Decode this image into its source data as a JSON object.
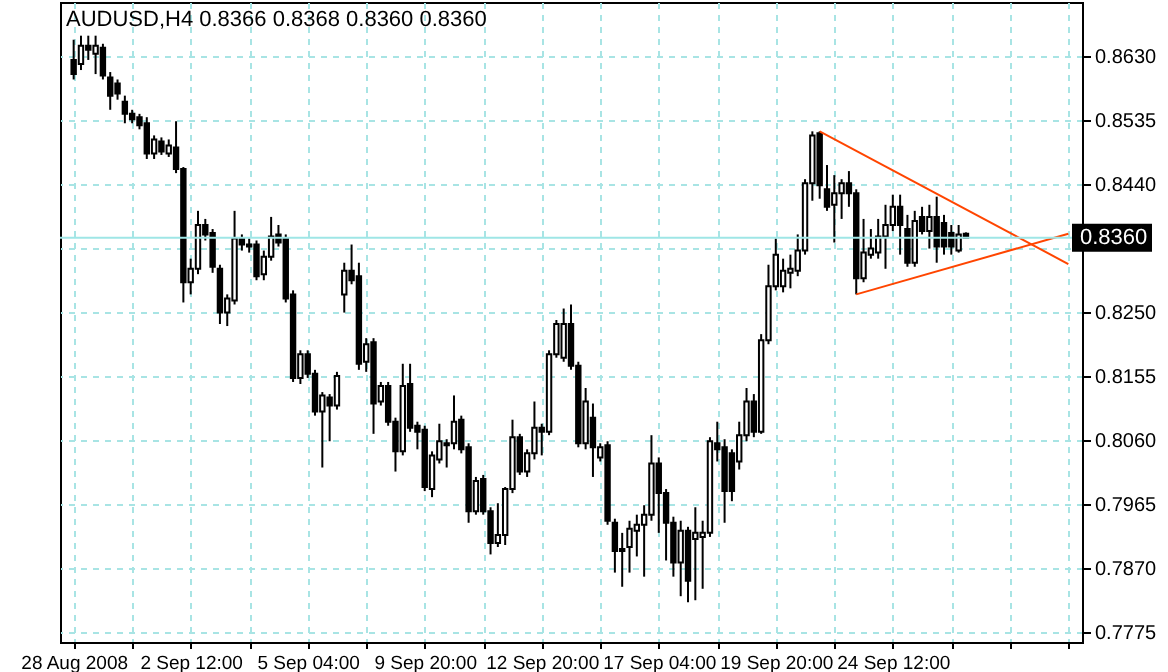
{
  "chart_data": {
    "type": "candlestick",
    "title": "AUDUSD,H4 0.8366 0.8368 0.8360 0.8360",
    "categories": [
      "28 Aug 2008",
      null,
      null,
      null,
      null,
      null,
      null,
      null,
      null,
      null,
      null,
      null,
      null,
      null,
      null,
      null,
      "2 Sep 12:00",
      null,
      null,
      null,
      null,
      null,
      null,
      null,
      null,
      null,
      null,
      null,
      null,
      null,
      null,
      null,
      "5 Sep 04:00",
      null,
      null,
      null,
      null,
      null,
      null,
      null,
      null,
      null,
      null,
      null,
      null,
      null,
      null,
      null,
      "9 Sep 20:00",
      null,
      null,
      null,
      null,
      null,
      null,
      null,
      null,
      null,
      null,
      null,
      null,
      null,
      null,
      null,
      "12 Sep 20:00",
      null,
      null,
      null,
      null,
      null,
      null,
      null,
      null,
      null,
      null,
      null,
      null,
      null,
      null,
      null,
      "17 Sep 04:00",
      null,
      null,
      null,
      null,
      null,
      null,
      null,
      null,
      null,
      null,
      null,
      null,
      null,
      null,
      null,
      "19 Sep 20:00",
      null,
      null,
      null,
      null,
      null,
      null,
      null,
      null,
      null,
      null,
      null,
      null,
      null,
      null,
      null,
      "24 Sep 12:00",
      null,
      null,
      null,
      null,
      null,
      null,
      null,
      null,
      null,
      null,
      null,
      null,
      null,
      null,
      null,
      null,
      null,
      null,
      null,
      null,
      null,
      null,
      null,
      null
    ],
    "ohlc": [
      [
        0.8624,
        0.8654,
        0.8595,
        0.8603
      ],
      [
        0.8618,
        0.866,
        0.8609,
        0.8645
      ],
      [
        0.8645,
        0.866,
        0.8624,
        0.8639
      ],
      [
        0.8633,
        0.866,
        0.8603,
        0.8645
      ],
      [
        0.8642,
        0.8648,
        0.8595,
        0.8601
      ],
      [
        0.8598,
        0.8606,
        0.855,
        0.8571
      ],
      [
        0.8589,
        0.8595,
        0.8565,
        0.8574
      ],
      [
        0.8562,
        0.8571,
        0.853,
        0.8544
      ],
      [
        0.8544,
        0.855,
        0.853,
        0.8536
      ],
      [
        0.8539,
        0.8544,
        0.8521,
        0.8527
      ],
      [
        0.853,
        0.8539,
        0.8477,
        0.8485
      ],
      [
        0.8485,
        0.8512,
        0.8477,
        0.8506
      ],
      [
        0.8503,
        0.8509,
        0.8483,
        0.8488
      ],
      [
        0.8485,
        0.8506,
        0.848,
        0.8497
      ],
      [
        0.8494,
        0.8533,
        0.8456,
        0.8462
      ],
      [
        0.8462,
        0.8465,
        0.8264,
        0.8294
      ],
      [
        0.8294,
        0.8329,
        0.8276,
        0.8314
      ],
      [
        0.8314,
        0.84,
        0.8306,
        0.8379
      ],
      [
        0.8379,
        0.8388,
        0.8356,
        0.8365
      ],
      [
        0.8367,
        0.8373,
        0.8308,
        0.8317
      ],
      [
        0.8314,
        0.832,
        0.8232,
        0.8249
      ],
      [
        0.8249,
        0.8276,
        0.8229,
        0.827
      ],
      [
        0.8267,
        0.84,
        0.8261,
        0.8359
      ],
      [
        0.8359,
        0.8365,
        0.8341,
        0.835
      ],
      [
        0.835,
        0.8359,
        0.8338,
        0.8347
      ],
      [
        0.835,
        0.8356,
        0.8297,
        0.8303
      ],
      [
        0.8306,
        0.8341,
        0.8297,
        0.8332
      ],
      [
        0.8332,
        0.8391,
        0.8326,
        0.8362
      ],
      [
        0.8365,
        0.8379,
        0.8347,
        0.8353
      ],
      [
        0.8359,
        0.8365,
        0.8264,
        0.827
      ],
      [
        0.8276,
        0.8282,
        0.8146,
        0.8152
      ],
      [
        0.8152,
        0.8193,
        0.8143,
        0.8187
      ],
      [
        0.8187,
        0.8193,
        0.8152,
        0.8158
      ],
      [
        0.8158,
        0.8164,
        0.8096,
        0.8102
      ],
      [
        0.8102,
        0.8131,
        0.8019,
        0.8126
      ],
      [
        0.8123,
        0.8128,
        0.8058,
        0.8111
      ],
      [
        0.8111,
        0.8161,
        0.8105,
        0.8155
      ],
      [
        0.8276,
        0.8323,
        0.8249,
        0.8311
      ],
      [
        0.8311,
        0.835,
        0.8291,
        0.8297
      ],
      [
        0.8303,
        0.8323,
        0.8164,
        0.8173
      ],
      [
        0.8176,
        0.8211,
        0.8161,
        0.8202
      ],
      [
        0.8205,
        0.8211,
        0.8069,
        0.8114
      ],
      [
        0.8117,
        0.8146,
        0.8111,
        0.814
      ],
      [
        0.814,
        0.8146,
        0.8081,
        0.8087
      ],
      [
        0.8087,
        0.8093,
        0.8013,
        0.8043
      ],
      [
        0.8043,
        0.8173,
        0.8037,
        0.814
      ],
      [
        0.8143,
        0.8173,
        0.8072,
        0.8078
      ],
      [
        0.8081,
        0.8087,
        0.8046,
        0.8072
      ],
      [
        0.8075,
        0.8081,
        0.7984,
        0.799
      ],
      [
        0.7987,
        0.8043,
        0.7975,
        0.8037
      ],
      [
        0.8031,
        0.8084,
        0.8025,
        0.8058
      ],
      [
        0.8055,
        0.8061,
        0.8019,
        0.8052
      ],
      [
        0.8055,
        0.8126,
        0.8046,
        0.8087
      ],
      [
        0.809,
        0.8096,
        0.804,
        0.8046
      ],
      [
        0.8049,
        0.8055,
        0.7937,
        0.7954
      ],
      [
        0.7954,
        0.8005,
        0.7949,
        0.7999
      ],
      [
        0.8002,
        0.8008,
        0.7949,
        0.7954
      ],
      [
        0.7954,
        0.796,
        0.789,
        0.7907
      ],
      [
        0.7907,
        0.7966,
        0.7901,
        0.7919
      ],
      [
        0.7919,
        0.799,
        0.7904,
        0.7987
      ],
      [
        0.7987,
        0.809,
        0.7981,
        0.8064
      ],
      [
        0.8064,
        0.8069,
        0.8008,
        0.8013
      ],
      [
        0.8013,
        0.8046,
        0.8005,
        0.804
      ],
      [
        0.804,
        0.8117,
        0.8031,
        0.8078
      ],
      [
        0.8078,
        0.8084,
        0.8037,
        0.8072
      ],
      [
        0.8072,
        0.8193,
        0.8067,
        0.8187
      ],
      [
        0.8187,
        0.8238,
        0.8182,
        0.8232
      ],
      [
        0.8182,
        0.8255,
        0.8176,
        0.8232
      ],
      [
        0.8232,
        0.8261,
        0.8164,
        0.817
      ],
      [
        0.817,
        0.8176,
        0.8049,
        0.8055
      ],
      [
        0.8055,
        0.8137,
        0.8046,
        0.8117
      ],
      [
        0.8093,
        0.8114,
        0.8005,
        0.8049
      ],
      [
        0.8034,
        0.8055,
        0.8028,
        0.8049
      ],
      [
        0.8052,
        0.8058,
        0.7934,
        0.794
      ],
      [
        0.7937,
        0.7943,
        0.7863,
        0.7895
      ],
      [
        0.7898,
        0.7922,
        0.7842,
        0.7895
      ],
      [
        0.7901,
        0.794,
        0.7863,
        0.7928
      ],
      [
        0.7925,
        0.7949,
        0.7887,
        0.7934
      ],
      [
        0.7934,
        0.7963,
        0.7857,
        0.7949
      ],
      [
        0.7949,
        0.8067,
        0.794,
        0.8025
      ],
      [
        0.8025,
        0.8034,
        0.7922,
        0.7981
      ],
      [
        0.7981,
        0.7987,
        0.7881,
        0.7937
      ],
      [
        0.7937,
        0.7946,
        0.7857,
        0.7878
      ],
      [
        0.7878,
        0.794,
        0.7828,
        0.7925
      ],
      [
        0.7925,
        0.7931,
        0.7819,
        0.7851
      ],
      [
        0.7913,
        0.796,
        0.7822,
        0.7922
      ],
      [
        0.7916,
        0.794,
        0.7839,
        0.7922
      ],
      [
        0.7922,
        0.8064,
        0.7916,
        0.8058
      ],
      [
        0.8055,
        0.8087,
        0.8028,
        0.8046
      ],
      [
        0.8049,
        0.8061,
        0.7937,
        0.7984
      ],
      [
        0.804,
        0.8046,
        0.7969,
        0.7984
      ],
      [
        0.8028,
        0.8087,
        0.8016,
        0.8067
      ],
      [
        0.8067,
        0.8137,
        0.8058,
        0.8117
      ],
      [
        0.8117,
        0.8128,
        0.8064,
        0.8072
      ],
      [
        0.8072,
        0.8217,
        0.8069,
        0.8208
      ],
      [
        0.8208,
        0.832,
        0.8202,
        0.8288
      ],
      [
        0.8288,
        0.8359,
        0.8282,
        0.8335
      ],
      [
        0.8288,
        0.8329,
        0.8279,
        0.8311
      ],
      [
        0.8308,
        0.8335,
        0.8285,
        0.8314
      ],
      [
        0.8311,
        0.8365,
        0.8303,
        0.8341
      ],
      [
        0.8341,
        0.8447,
        0.8335,
        0.8441
      ],
      [
        0.8441,
        0.8518,
        0.8415,
        0.8512
      ],
      [
        0.8515,
        0.8518,
        0.8418,
        0.8438
      ],
      [
        0.8432,
        0.8468,
        0.84,
        0.8406
      ],
      [
        0.8409,
        0.8453,
        0.8353,
        0.8426
      ],
      [
        0.8426,
        0.8447,
        0.8388,
        0.8441
      ],
      [
        0.8441,
        0.8459,
        0.8406,
        0.8426
      ],
      [
        0.8426,
        0.8432,
        0.8276,
        0.83
      ],
      [
        0.83,
        0.8388,
        0.8294,
        0.8338
      ],
      [
        0.8335,
        0.8373,
        0.8329,
        0.8344
      ],
      [
        0.8338,
        0.8388,
        0.8329,
        0.8362
      ],
      [
        0.8362,
        0.8409,
        0.8314,
        0.8379
      ],
      [
        0.8379,
        0.8424,
        0.837,
        0.8406
      ],
      [
        0.8406,
        0.8424,
        0.8335,
        0.8379
      ],
      [
        0.8373,
        0.8394,
        0.8317,
        0.8323
      ],
      [
        0.8323,
        0.84,
        0.8317,
        0.8385
      ],
      [
        0.8391,
        0.8406,
        0.8365,
        0.837
      ],
      [
        0.837,
        0.8409,
        0.8344,
        0.8391
      ],
      [
        0.8391,
        0.8421,
        0.8323,
        0.8347
      ],
      [
        0.8382,
        0.8394,
        0.8335,
        0.8347
      ],
      [
        0.8367,
        0.8379,
        0.8335,
        0.8347
      ],
      [
        0.8341,
        0.8379,
        0.8338,
        0.8365
      ],
      [
        0.8366,
        0.8368,
        0.836,
        0.836
      ],
      null,
      null,
      null,
      null,
      null,
      null,
      null,
      null,
      null,
      null,
      null,
      null,
      null,
      null
    ],
    "series": [
      {
        "type": "line",
        "values": [
          null,
          null,
          null,
          null,
          null,
          null,
          null,
          null,
          null,
          null,
          null,
          null,
          null,
          null,
          null,
          null,
          null,
          null,
          null,
          null,
          null,
          null,
          null,
          null,
          null,
          null,
          null,
          null,
          null,
          null,
          null,
          null,
          null,
          null,
          null,
          null,
          null,
          null,
          null,
          null,
          null,
          null,
          null,
          null,
          null,
          null,
          null,
          null,
          null,
          null,
          null,
          null,
          null,
          null,
          null,
          null,
          null,
          null,
          null,
          null,
          null,
          null,
          null,
          null,
          null,
          null,
          null,
          null,
          null,
          null,
          null,
          null,
          null,
          null,
          null,
          null,
          null,
          null,
          null,
          null,
          null,
          null,
          null,
          null,
          null,
          null,
          null,
          null,
          null,
          null,
          null,
          null,
          null,
          null,
          null,
          null,
          null,
          null,
          null,
          null,
          null,
          null,
          0.8518,
          null,
          null,
          null,
          null,
          null,
          null,
          null,
          null,
          null,
          null,
          null,
          null,
          null,
          null,
          null,
          null,
          null,
          null,
          null,
          null,
          null,
          null,
          null,
          null,
          null,
          null,
          null,
          null,
          null,
          null,
          null,
          null,
          null,
          0.8321
        ],
        "color": "#ff4500"
      },
      {
        "type": "line",
        "values": [
          null,
          null,
          null,
          null,
          null,
          null,
          null,
          null,
          null,
          null,
          null,
          null,
          null,
          null,
          null,
          null,
          null,
          null,
          null,
          null,
          null,
          null,
          null,
          null,
          null,
          null,
          null,
          null,
          null,
          null,
          null,
          null,
          null,
          null,
          null,
          null,
          null,
          null,
          null,
          null,
          null,
          null,
          null,
          null,
          null,
          null,
          null,
          null,
          null,
          null,
          null,
          null,
          null,
          null,
          null,
          null,
          null,
          null,
          null,
          null,
          null,
          null,
          null,
          null,
          null,
          null,
          null,
          null,
          null,
          null,
          null,
          null,
          null,
          null,
          null,
          null,
          null,
          null,
          null,
          null,
          null,
          null,
          null,
          null,
          null,
          null,
          null,
          null,
          null,
          null,
          null,
          null,
          null,
          null,
          null,
          null,
          null,
          null,
          null,
          null,
          null,
          null,
          null,
          null,
          null,
          null,
          null,
          0.8276,
          null,
          null,
          null,
          null,
          null,
          null,
          null,
          null,
          null,
          null,
          null,
          null,
          null,
          null,
          null,
          null,
          null,
          null,
          null,
          null,
          null,
          null,
          null,
          null,
          null,
          null,
          null,
          null,
          0.8366
        ],
        "color": "#ff4500"
      }
    ],
    "ylim": [
      0.776,
      0.871
    ],
    "yticks": [
      {
        "value": 0.7775,
        "label": "0.7775"
      },
      {
        "value": 0.787,
        "label": "0.7870"
      },
      {
        "value": 0.7965,
        "label": "0.7965"
      },
      {
        "value": 0.806,
        "label": "0.8060"
      },
      {
        "value": 0.8155,
        "label": "0.8155"
      },
      {
        "value": 0.825,
        "label": "0.8250"
      },
      {
        "value": 0.8345,
        "label": null
      },
      {
        "value": 0.844,
        "label": "0.8440"
      },
      {
        "value": 0.8535,
        "label": "0.8535"
      },
      {
        "value": 0.863,
        "label": "0.8630"
      }
    ],
    "ref_lines": [
      {
        "axis": "y",
        "value": 0.836,
        "label": "0.8360",
        "color": "#9fe6e6"
      }
    ],
    "grid": true
  }
}
